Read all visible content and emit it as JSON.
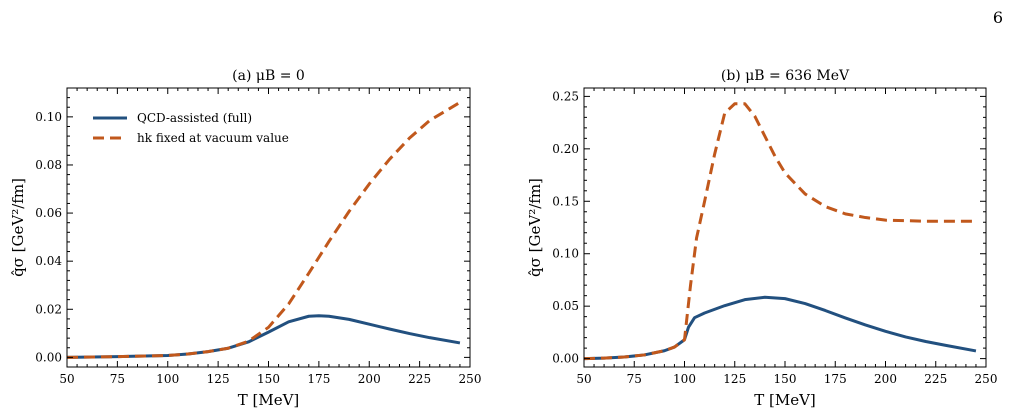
{
  "page_number": "6",
  "colors": {
    "full": "#22507f",
    "fixed": "#c1581c",
    "axis": "#000000"
  },
  "chart_data": [
    {
      "type": "line",
      "title": "(a) μB = 0",
      "xlabel": "T [MeV]",
      "ylabel": "q̂σ [GeV²/fm]",
      "xlim": [
        50,
        250
      ],
      "ylim": [
        -0.004,
        0.112
      ],
      "xticks": [
        50,
        75,
        100,
        125,
        150,
        175,
        200,
        225,
        250
      ],
      "yticks": [
        0.0,
        0.02,
        0.04,
        0.06,
        0.08,
        0.1
      ],
      "ytick_labels": [
        "0.00",
        "0.02",
        "0.04",
        "0.06",
        "0.08",
        "0.10"
      ],
      "grid": false,
      "legend": "upper-left",
      "series": [
        {
          "name": "QCD-assisted (full)",
          "style": "solid",
          "x": [
            50,
            75,
            100,
            110,
            120,
            130,
            140,
            150,
            160,
            170,
            175,
            180,
            190,
            200,
            210,
            220,
            230,
            245
          ],
          "y": [
            0.0,
            0.0003,
            0.0008,
            0.0014,
            0.0024,
            0.0038,
            0.0064,
            0.0105,
            0.0148,
            0.0171,
            0.0173,
            0.0171,
            0.0158,
            0.0138,
            0.0118,
            0.0099,
            0.0082,
            0.006
          ]
        },
        {
          "name": "hk fixed at vacuum value",
          "style": "dashed",
          "x": [
            50,
            75,
            100,
            110,
            120,
            130,
            140,
            150,
            160,
            170,
            180,
            190,
            200,
            210,
            220,
            230,
            240,
            245
          ],
          "y": [
            0.0,
            0.0003,
            0.0008,
            0.0014,
            0.0024,
            0.0038,
            0.0067,
            0.0125,
            0.0222,
            0.035,
            0.0482,
            0.0607,
            0.0721,
            0.0823,
            0.0912,
            0.0985,
            0.1035,
            0.106
          ]
        }
      ]
    },
    {
      "type": "line",
      "title": "(b) μB = 636 MeV",
      "xlabel": "T [MeV]",
      "ylabel": "q̂σ [GeV²/fm]",
      "xlim": [
        50,
        250
      ],
      "ylim": [
        -0.008,
        0.258
      ],
      "xticks": [
        50,
        75,
        100,
        125,
        150,
        175,
        200,
        225,
        250
      ],
      "yticks": [
        0.0,
        0.05,
        0.1,
        0.15,
        0.2,
        0.25
      ],
      "ytick_labels": [
        "0.00",
        "0.05",
        "0.10",
        "0.15",
        "0.20",
        "0.25"
      ],
      "grid": false,
      "series": [
        {
          "name": "QCD-assisted (full)",
          "style": "solid",
          "x": [
            50,
            60,
            70,
            80,
            90,
            95,
            100,
            102,
            105,
            110,
            120,
            130,
            140,
            150,
            160,
            170,
            180,
            190,
            200,
            210,
            220,
            230,
            245
          ],
          "y": [
            0.0,
            0.0005,
            0.0015,
            0.0035,
            0.0075,
            0.011,
            0.018,
            0.03,
            0.039,
            0.0435,
            0.0505,
            0.0562,
            0.0585,
            0.0572,
            0.0525,
            0.0459,
            0.0388,
            0.0321,
            0.026,
            0.0207,
            0.0163,
            0.0126,
            0.0073
          ]
        },
        {
          "name": "hk fixed at vacuum value",
          "style": "dashed",
          "x": [
            50,
            60,
            70,
            80,
            90,
            95,
            100,
            103,
            106,
            110,
            115,
            120,
            125,
            130,
            135,
            140,
            145,
            150,
            160,
            170,
            180,
            190,
            200,
            210,
            220,
            230,
            245
          ],
          "y": [
            0.0,
            0.0005,
            0.0015,
            0.0035,
            0.0075,
            0.011,
            0.018,
            0.07,
            0.115,
            0.15,
            0.195,
            0.234,
            0.243,
            0.243,
            0.231,
            0.212,
            0.193,
            0.177,
            0.157,
            0.145,
            0.138,
            0.1345,
            0.132,
            0.1315,
            0.131,
            0.131,
            0.131
          ]
        }
      ]
    }
  ]
}
